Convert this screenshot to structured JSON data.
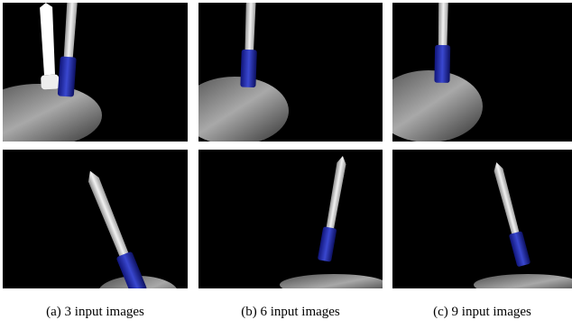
{
  "figure": {
    "subfigures": [
      {
        "caption": "(a) 3 input images"
      },
      {
        "caption": "(b) 6 input images"
      },
      {
        "caption": "(c) 9 input images"
      }
    ]
  }
}
